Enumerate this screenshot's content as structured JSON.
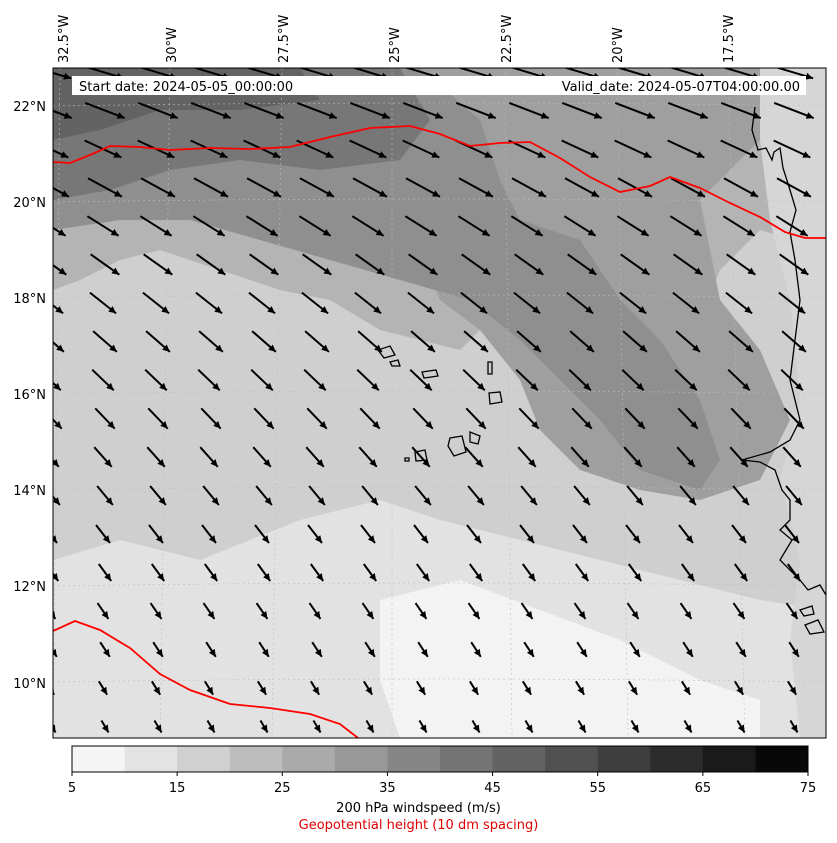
{
  "header": {
    "start_date": "Start date: 2024-05-05_00:00:00",
    "valid_date": "Valid_date: 2024-05-07T04:00:00.00"
  },
  "map": {
    "lon_labels": [
      "32.5°W",
      "30°W",
      "27.5°W",
      "25°W",
      "22.5°W",
      "20°W",
      "17.5°W"
    ],
    "lat_labels": [
      "22°N",
      "20°N",
      "18°N",
      "16°N",
      "14°N",
      "12°N",
      "10°N"
    ],
    "field": "200 hPa windspeed",
    "wind_dir_deg": 300,
    "contour_color": "#ff0000",
    "coast_color": "#000000"
  },
  "colorbar": {
    "levels": [
      5,
      10,
      15,
      20,
      25,
      30,
      35,
      40,
      45,
      50,
      55,
      60,
      65,
      70,
      75
    ],
    "tick_labels": [
      "5",
      "15",
      "25",
      "35",
      "45",
      "55",
      "65",
      "75"
    ],
    "colors": [
      "#f5f5f5",
      "#e3e3e3",
      "#d0d0d0",
      "#bdbdbd",
      "#aaaaaa",
      "#989898",
      "#868686",
      "#747474",
      "#626262",
      "#505050",
      "#3e3e3e",
      "#2c2c2c",
      "#1a1a1a",
      "#080808"
    ],
    "label": "200 hPa windspeed (m/s)",
    "sublabel": "Geopotential height (10 dm spacing)",
    "sublabel_color": "#e00000"
  }
}
